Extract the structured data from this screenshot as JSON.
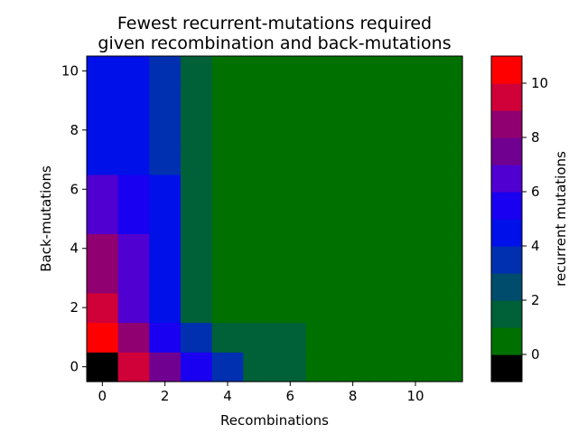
{
  "chart_data": {
    "type": "heatmap",
    "title_line1": "Fewest recurrent-mutations required",
    "title_line2": "given recombination and back-mutations",
    "xlabel": "Recombinations",
    "ylabel": "Back-mutations",
    "colorbar_label": "recurrent mutations",
    "x": [
      0,
      1,
      2,
      3,
      4,
      5,
      6,
      7,
      8,
      9,
      10,
      11
    ],
    "y": [
      0,
      1,
      2,
      3,
      4,
      5,
      6,
      7,
      8,
      9,
      10
    ],
    "xticks": [
      "0",
      "2",
      "4",
      "6",
      "8",
      "10"
    ],
    "yticks": [
      "0",
      "2",
      "4",
      "6",
      "8",
      "10"
    ],
    "colorbar_ticks": [
      "0",
      "2",
      "4",
      "6",
      "8",
      "10"
    ],
    "values": [
      [
        -1,
        9,
        7,
        5,
        3,
        1,
        1,
        0,
        0,
        0,
        0,
        0
      ],
      [
        10,
        8,
        5,
        3,
        1,
        1,
        1,
        0,
        0,
        0,
        0,
        0
      ],
      [
        9,
        6,
        4,
        1,
        0,
        0,
        0,
        0,
        0,
        0,
        0,
        0
      ],
      [
        8,
        6,
        4,
        1,
        0,
        0,
        0,
        0,
        0,
        0,
        0,
        0
      ],
      [
        8,
        6,
        4,
        1,
        0,
        0,
        0,
        0,
        0,
        0,
        0,
        0
      ],
      [
        6,
        5,
        4,
        1,
        0,
        0,
        0,
        0,
        0,
        0,
        0,
        0
      ],
      [
        6,
        5,
        4,
        1,
        0,
        0,
        0,
        0,
        0,
        0,
        0,
        0
      ],
      [
        4,
        4,
        3,
        1,
        0,
        0,
        0,
        0,
        0,
        0,
        0,
        0
      ],
      [
        4,
        4,
        3,
        1,
        0,
        0,
        0,
        0,
        0,
        0,
        0,
        0
      ],
      [
        4,
        4,
        3,
        1,
        0,
        0,
        0,
        0,
        0,
        0,
        0,
        0
      ],
      [
        4,
        4,
        3,
        1,
        0,
        0,
        0,
        0,
        0,
        0,
        0,
        0
      ]
    ],
    "colormap": {
      "-1": "#000000",
      "0": "#007000",
      "1": "#006038",
      "2": "#004c6c",
      "3": "#0030b0",
      "4": "#0010e8",
      "5": "#1a00f0",
      "6": "#5000d0",
      "7": "#700090",
      "8": "#900070",
      "9": "#d00038",
      "10": "#ff0000"
    },
    "colorbar_range": [
      -1,
      11
    ]
  }
}
